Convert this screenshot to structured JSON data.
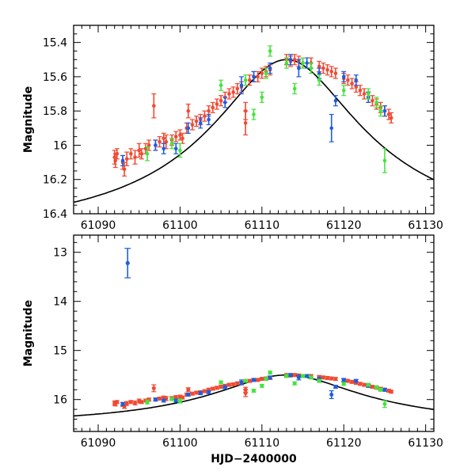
{
  "colors": {
    "red": "#f04a32",
    "blue": "#1d5ee0",
    "green": "#44e33c",
    "curve": "#000000"
  },
  "chart_data": [
    {
      "type": "scatter",
      "name": "top",
      "title": "",
      "xlabel": "",
      "ylabel": "Magnitude",
      "xlim": [
        61087,
        61131
      ],
      "ylim": [
        16.4,
        15.3
      ],
      "x_ticks": [
        61090,
        61100,
        61110,
        61120,
        61130
      ],
      "x_tick_labels": [
        "61090",
        "61100",
        "61110",
        "61120",
        "61130"
      ],
      "y_ticks": [
        15.4,
        15.6,
        15.8,
        16.0,
        16.2,
        16.4
      ],
      "y_tick_labels": [
        "15.4",
        "15.6",
        "15.8",
        "16",
        "16.2",
        "16.4"
      ]
    },
    {
      "type": "scatter",
      "name": "bottom",
      "title": "",
      "xlabel": "HJD−2400000",
      "ylabel": "Magnitude",
      "xlim": [
        61087,
        61131
      ],
      "ylim": [
        16.65,
        12.65
      ],
      "x_ticks": [
        61090,
        61100,
        61110,
        61120,
        61130
      ],
      "x_tick_labels": [
        "61090",
        "61100",
        "61110",
        "61120",
        "61130"
      ],
      "y_ticks": [
        13,
        14,
        15,
        16
      ],
      "y_tick_labels": [
        "13",
        "14",
        "15",
        "16"
      ]
    }
  ],
  "model": {
    "t0": 61113.0,
    "peak_mag": 15.5,
    "wing_mag": 16.5,
    "u0": 0.3,
    "tE": 30
  },
  "series": [
    {
      "name": "red",
      "color": "red",
      "points": [
        [
          61092.0,
          16.07,
          0.04
        ],
        [
          61092.1,
          16.09,
          0.04
        ],
        [
          61092.3,
          16.05,
          0.03
        ],
        [
          61093.0,
          16.1,
          0.04
        ],
        [
          61093.2,
          16.14,
          0.04
        ],
        [
          61093.5,
          16.08,
          0.04
        ],
        [
          61094.0,
          16.05,
          0.03
        ],
        [
          61094.5,
          16.07,
          0.04
        ],
        [
          61095.0,
          16.03,
          0.04
        ],
        [
          61095.3,
          16.05,
          0.03
        ],
        [
          61095.8,
          16.02,
          0.03
        ],
        [
          61096.2,
          16.0,
          0.03
        ],
        [
          61096.8,
          15.77,
          0.07
        ],
        [
          61097.0,
          16.0,
          0.03
        ],
        [
          61097.5,
          15.98,
          0.03
        ],
        [
          61098.0,
          15.96,
          0.03
        ],
        [
          61098.3,
          15.98,
          0.04
        ],
        [
          61099.0,
          15.97,
          0.03
        ],
        [
          61099.5,
          15.95,
          0.03
        ],
        [
          61100.0,
          15.94,
          0.03
        ],
        [
          61100.3,
          15.96,
          0.03
        ],
        [
          61100.8,
          15.9,
          0.03
        ],
        [
          61101.0,
          15.8,
          0.04
        ],
        [
          61101.5,
          15.88,
          0.03
        ],
        [
          61102.0,
          15.86,
          0.03
        ],
        [
          61102.5,
          15.85,
          0.03
        ],
        [
          61103.0,
          15.83,
          0.03
        ],
        [
          61103.5,
          15.8,
          0.03
        ],
        [
          61104.0,
          15.78,
          0.03
        ],
        [
          61104.5,
          15.76,
          0.03
        ],
        [
          61105.0,
          15.74,
          0.03
        ],
        [
          61105.5,
          15.72,
          0.03
        ],
        [
          61106.0,
          15.7,
          0.03
        ],
        [
          61106.5,
          15.69,
          0.03
        ],
        [
          61107.0,
          15.67,
          0.03
        ],
        [
          61107.5,
          15.66,
          0.03
        ],
        [
          61108.0,
          15.8,
          0.05
        ],
        [
          61108.0,
          15.87,
          0.07
        ],
        [
          61108.5,
          15.62,
          0.03
        ],
        [
          61109.0,
          15.6,
          0.03
        ],
        [
          61109.5,
          15.6,
          0.03
        ],
        [
          61110.0,
          15.58,
          0.03
        ],
        [
          61110.5,
          15.57,
          0.03
        ],
        [
          61111.0,
          15.56,
          0.03
        ],
        [
          61113.0,
          15.5,
          0.03
        ],
        [
          61113.5,
          15.51,
          0.03
        ],
        [
          61114.0,
          15.5,
          0.03
        ],
        [
          61114.5,
          15.51,
          0.03
        ],
        [
          61115.0,
          15.52,
          0.03
        ],
        [
          61116.0,
          15.52,
          0.03
        ],
        [
          61117.0,
          15.54,
          0.03
        ],
        [
          61117.5,
          15.55,
          0.03
        ],
        [
          61118.0,
          15.56,
          0.03
        ],
        [
          61118.5,
          15.57,
          0.03
        ],
        [
          61119.0,
          15.58,
          0.03
        ],
        [
          61120.0,
          15.61,
          0.03
        ],
        [
          61120.5,
          15.62,
          0.03
        ],
        [
          61121.0,
          15.64,
          0.03
        ],
        [
          61121.5,
          15.66,
          0.03
        ],
        [
          61122.0,
          15.68,
          0.03
        ],
        [
          61122.5,
          15.7,
          0.03
        ],
        [
          61123.0,
          15.72,
          0.03
        ],
        [
          61123.5,
          15.74,
          0.03
        ],
        [
          61124.0,
          15.76,
          0.03
        ],
        [
          61124.5,
          15.78,
          0.03
        ],
        [
          61125.0,
          15.8,
          0.03
        ],
        [
          61125.5,
          15.82,
          0.03
        ],
        [
          61125.8,
          15.84,
          0.03
        ]
      ]
    },
    {
      "name": "blue",
      "color": "blue",
      "points": [
        [
          61093.0,
          16.09,
          0.03
        ],
        [
          61097.0,
          16.0,
          0.03
        ],
        [
          61098.0,
          16.02,
          0.03
        ],
        [
          61099.5,
          16.02,
          0.03
        ],
        [
          61101.0,
          15.9,
          0.03
        ],
        [
          61102.5,
          15.87,
          0.03
        ],
        [
          61103.5,
          15.85,
          0.03
        ],
        [
          61105.5,
          15.75,
          0.03
        ],
        [
          61107.5,
          15.65,
          0.05
        ],
        [
          61109.0,
          15.6,
          0.03
        ],
        [
          61111.0,
          15.55,
          0.03
        ],
        [
          61113.5,
          15.5,
          0.03
        ],
        [
          61114.5,
          15.55,
          0.05
        ],
        [
          61115.5,
          15.52,
          0.03
        ],
        [
          61117.0,
          15.58,
          0.03
        ],
        [
          61118.5,
          15.9,
          0.08
        ],
        [
          61119.0,
          15.74,
          0.03
        ],
        [
          61120.0,
          15.6,
          0.03
        ],
        [
          61121.5,
          15.62,
          0.03
        ],
        [
          61123.0,
          15.72,
          0.03
        ],
        [
          61125.0,
          15.8,
          0.03
        ]
      ]
    },
    {
      "name": "green",
      "color": "green",
      "points": [
        [
          61096.0,
          16.05,
          0.04
        ],
        [
          61099.0,
          15.99,
          0.03
        ],
        [
          61100.0,
          16.03,
          0.04
        ],
        [
          61105.0,
          15.65,
          0.03
        ],
        [
          61108.0,
          15.62,
          0.03
        ],
        [
          61109.0,
          15.82,
          0.03
        ],
        [
          61110.0,
          15.72,
          0.03
        ],
        [
          61110.5,
          15.58,
          0.03
        ],
        [
          61111.0,
          15.45,
          0.03
        ],
        [
          61113.0,
          15.52,
          0.03
        ],
        [
          61114.0,
          15.67,
          0.03
        ],
        [
          61115.0,
          15.52,
          0.03
        ],
        [
          61116.0,
          15.55,
          0.03
        ],
        [
          61117.0,
          15.62,
          0.03
        ],
        [
          61120.0,
          15.68,
          0.03
        ],
        [
          61123.0,
          15.7,
          0.03
        ],
        [
          61124.0,
          15.75,
          0.03
        ],
        [
          61124.5,
          15.8,
          0.03
        ],
        [
          61125.0,
          16.09,
          0.07
        ]
      ]
    }
  ],
  "outlier_bottom": [
    61093.6,
    13.22,
    0.3
  ]
}
